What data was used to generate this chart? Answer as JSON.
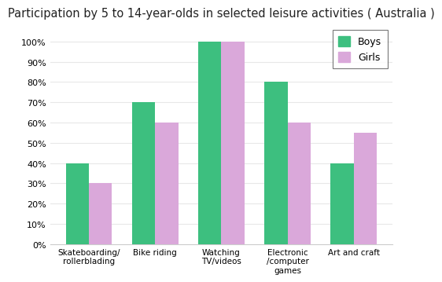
{
  "title": "Participation by 5 to 14-year-olds in selected leisure activities ( Australia )",
  "categories": [
    "Skateboarding/\nrollerblading",
    "Bike riding",
    "Watching\nTV/videos",
    "Electronic\n/computer\ngames",
    "Art and craft"
  ],
  "boys": [
    40,
    70,
    100,
    80,
    40
  ],
  "girls": [
    30,
    60,
    100,
    60,
    55
  ],
  "boys_color": "#3dbf7f",
  "girls_color": "#daa8da",
  "background_color": "#ffffff",
  "grid_color": "#e8e8e8",
  "ylim": [
    0,
    108
  ],
  "yticks": [
    0,
    10,
    20,
    30,
    40,
    50,
    60,
    70,
    80,
    90,
    100
  ],
  "ytick_labels": [
    "0%",
    "10%",
    "20%",
    "30%",
    "40%",
    "50%",
    "60%",
    "70%",
    "80%",
    "90%",
    "100%"
  ],
  "bar_width": 0.35,
  "legend_labels": [
    "Boys",
    "Girls"
  ],
  "title_fontsize": 10.5
}
